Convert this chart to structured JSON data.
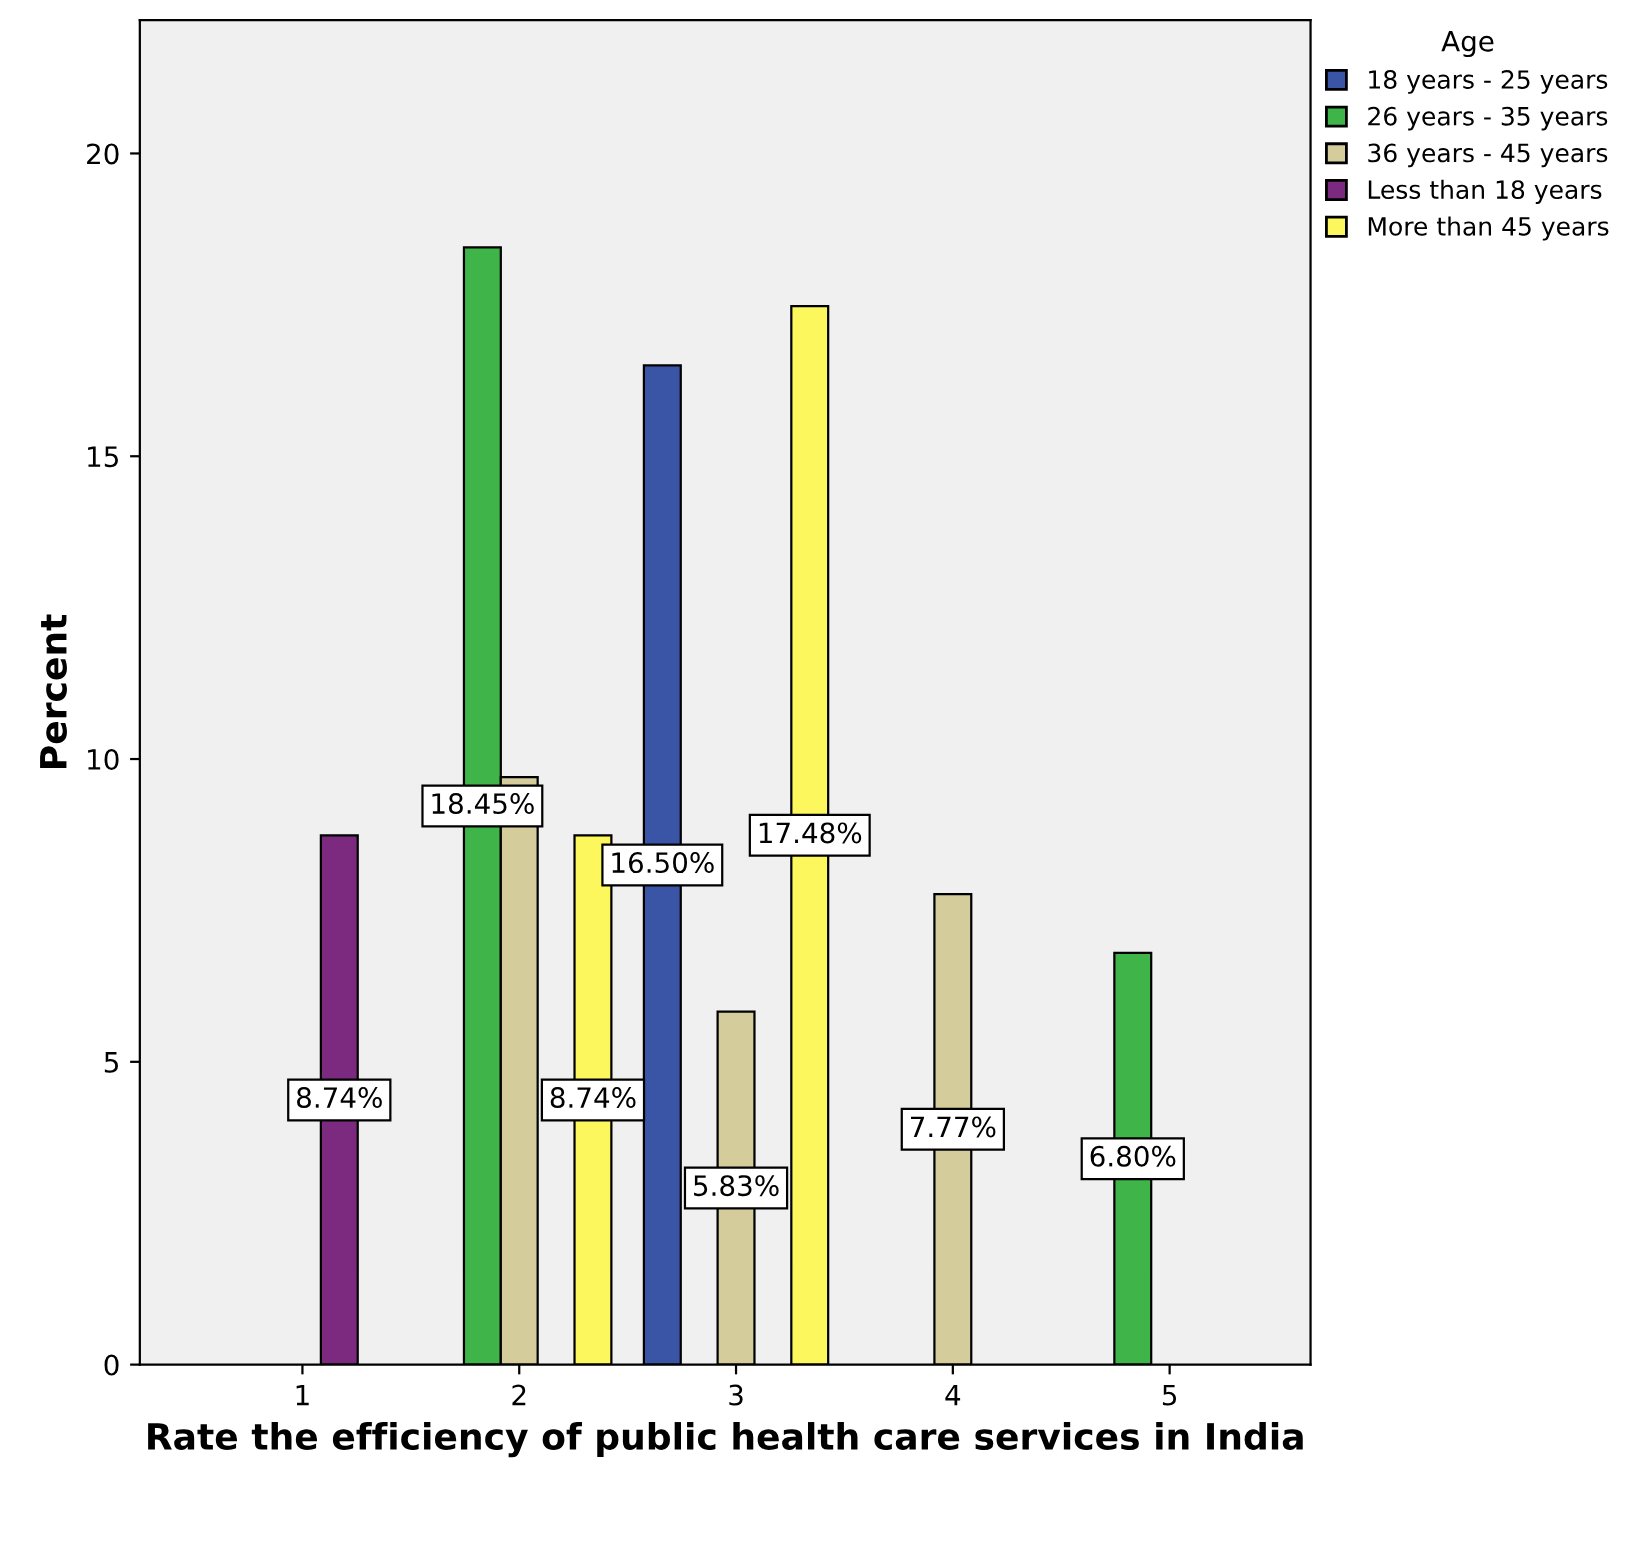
{
  "chart_data": {
    "type": "bar",
    "xlabel": "Rate the efficiency of public health care services in India",
    "ylabel": "Percent",
    "legend_title": "Age",
    "categories": [
      "1",
      "2",
      "3",
      "4",
      "5"
    ],
    "series": [
      {
        "name": "18 years - 25 years",
        "color": "#3a55a5",
        "values": [
          null,
          null,
          16.5,
          null,
          null
        ],
        "value_labels": [
          null,
          null,
          "16.50%",
          null,
          null
        ]
      },
      {
        "name": "26 years - 35 years",
        "color": "#3eb449",
        "values": [
          null,
          18.45,
          null,
          null,
          6.8
        ],
        "value_labels": [
          null,
          "18.45%",
          null,
          null,
          "6.80%"
        ]
      },
      {
        "name": "36 years - 45 years",
        "color": "#d4cc9a",
        "values": [
          null,
          9.7,
          5.83,
          7.77,
          null
        ],
        "value_labels": [
          null,
          null,
          "5.83%",
          "7.77%",
          null
        ]
      },
      {
        "name": "Less than 18 years",
        "color": "#7b2a7f",
        "values": [
          8.74,
          null,
          null,
          null,
          null
        ],
        "value_labels": [
          "8.74%",
          null,
          null,
          null,
          null
        ]
      },
      {
        "name": "More than 45 years",
        "color": "#fbf75c",
        "values": [
          null,
          8.74,
          17.48,
          null,
          null
        ],
        "value_labels": [
          null,
          "8.74%",
          "17.48%",
          null,
          null
        ]
      }
    ],
    "ylim": [
      0,
      22.2
    ],
    "yticks": [
      0,
      5,
      10,
      15,
      20
    ],
    "legend": "top right",
    "grid": false
  }
}
